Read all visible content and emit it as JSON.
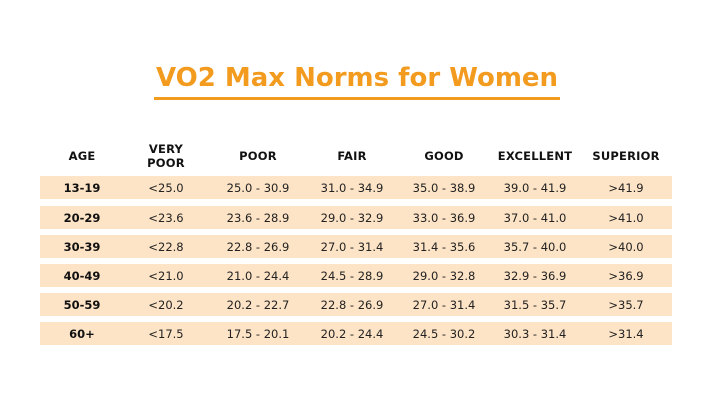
{
  "title": "VO2 Max Norms for Women",
  "colors": {
    "accent": "#f29b1f",
    "row_fill": "#fde4c6",
    "title_text": "#f29b1f"
  },
  "headers": [
    "AGE",
    "VERY\nPOOR",
    "POOR",
    "FAIR",
    "GOOD",
    "EXCELLENT",
    "SUPERIOR"
  ],
  "rows": [
    [
      "13-19",
      "<25.0",
      "25.0 - 30.9",
      "31.0 - 34.9",
      "35.0 - 38.9",
      "39.0 - 41.9",
      ">41.9"
    ],
    [
      "20-29",
      "<23.6",
      "23.6 - 28.9",
      "29.0 - 32.9",
      "33.0 - 36.9",
      "37.0 - 41.0",
      ">41.0"
    ],
    [
      "30-39",
      "<22.8",
      "22.8 - 26.9",
      "27.0 - 31.4",
      "31.4 - 35.6",
      "35.7 - 40.0",
      ">40.0"
    ],
    [
      "40-49",
      "<21.0",
      "21.0 - 24.4",
      "24.5 - 28.9",
      "29.0 - 32.8",
      "32.9 - 36.9",
      ">36.9"
    ],
    [
      "50-59",
      "<20.2",
      "20.2 - 22.7",
      "22.8 - 26.9",
      "27.0 - 31.4",
      "31.5 - 35.7",
      ">35.7"
    ],
    [
      "60+",
      "<17.5",
      "17.5 - 20.1",
      "20.2 - 24.4",
      "24.5 - 30.2",
      "30.3 - 31.4",
      ">31.4"
    ]
  ]
}
